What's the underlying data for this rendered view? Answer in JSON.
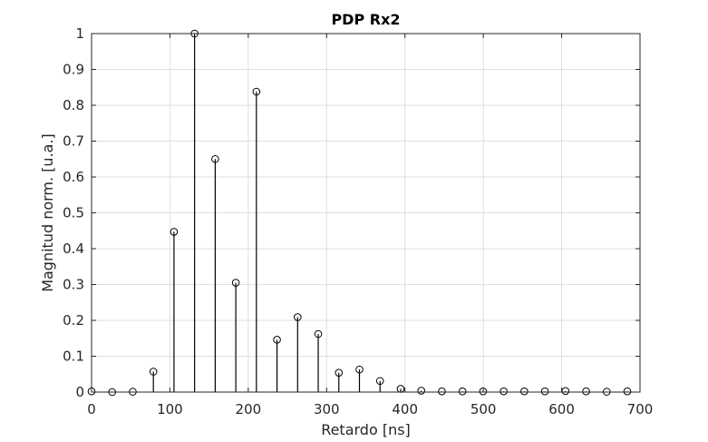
{
  "chart_data": {
    "type": "stem",
    "title": "PDP Rx2",
    "xlabel": "Retardo [ns]",
    "ylabel": "Magnitud norm. [u.a.]",
    "xlim": [
      0,
      700
    ],
    "ylim": [
      0,
      1
    ],
    "xticks": [
      "0",
      "100",
      "200",
      "300",
      "400",
      "500",
      "600",
      "700"
    ],
    "yticks": [
      "0",
      "0.1",
      "0.2",
      "0.3",
      "0.4",
      "0.5",
      "0.6",
      "0.7",
      "0.8",
      "0.9",
      "1"
    ],
    "grid": true,
    "marker": "circle",
    "x": [
      0,
      26.3,
      52.6,
      78.9,
      105.2,
      131.5,
      157.8,
      184.1,
      210.4,
      236.7,
      263.0,
      289.3,
      315.6,
      341.9,
      368.2,
      394.5,
      420.8,
      447.1,
      473.4,
      499.7,
      526.0,
      552.3,
      578.6,
      604.9,
      631.2,
      657.5,
      683.8
    ],
    "values": [
      0.002,
      0.0,
      0.001,
      0.057,
      0.447,
      1.0,
      0.65,
      0.305,
      0.838,
      0.146,
      0.209,
      0.162,
      0.054,
      0.063,
      0.031,
      0.009,
      0.004,
      0.002,
      0.002,
      0.002,
      0.002,
      0.002,
      0.002,
      0.003,
      0.002,
      0.001,
      0.002
    ]
  },
  "colors": {
    "stem": "#000000",
    "grid": "#dfdfdf",
    "axis": "#262626",
    "background": "#ffffff"
  }
}
